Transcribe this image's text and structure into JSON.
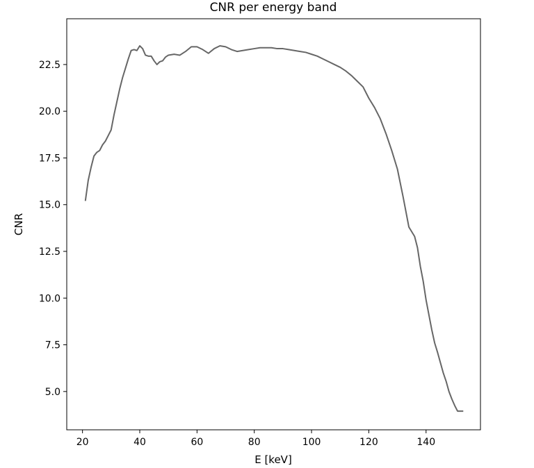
{
  "chart_data": {
    "type": "line",
    "title": "CNR per energy band",
    "xlabel": "E [keV]",
    "ylabel": "CNR",
    "xlim": [
      14.5,
      159
    ],
    "ylim": [
      2.95,
      24.95
    ],
    "xticks": [
      20,
      40,
      60,
      80,
      100,
      120,
      140
    ],
    "xtick_labels": [
      "20",
      "40",
      "60",
      "80",
      "100",
      "120",
      "140"
    ],
    "yticks": [
      5.0,
      7.5,
      10.0,
      12.5,
      15.0,
      17.5,
      20.0,
      22.5
    ],
    "ytick_labels": [
      "5.0",
      "7.5",
      "10.0",
      "12.5",
      "15.0",
      "17.5",
      "20.0",
      "22.5"
    ],
    "grid": false,
    "series": [
      {
        "color": "#666666",
        "x": [
          21,
          22,
          23,
          24,
          25,
          26,
          27,
          28,
          29,
          30,
          31,
          32,
          33,
          34,
          35,
          36,
          37,
          38,
          39,
          40,
          41,
          42,
          43,
          44,
          45,
          46,
          47,
          48,
          49,
          50,
          52,
          54,
          56,
          58,
          60,
          62,
          64,
          66,
          68,
          70,
          72,
          74,
          76,
          78,
          80,
          82,
          84,
          86,
          88,
          90,
          92,
          94,
          96,
          98,
          100,
          102,
          104,
          106,
          108,
          110,
          112,
          114,
          116,
          118,
          120,
          122,
          124,
          126,
          128,
          130,
          132,
          134,
          136,
          137,
          138,
          139,
          140,
          141,
          142,
          143,
          144,
          145,
          146,
          147,
          148,
          149,
          150,
          151,
          152,
          153
        ],
        "y": [
          15.2,
          16.3,
          17.0,
          17.6,
          17.8,
          17.9,
          18.2,
          18.4,
          18.7,
          19.0,
          19.8,
          20.5,
          21.2,
          21.8,
          22.3,
          22.8,
          23.25,
          23.3,
          23.25,
          23.5,
          23.35,
          23.0,
          22.95,
          22.95,
          22.7,
          22.5,
          22.65,
          22.7,
          22.9,
          23.0,
          23.05,
          23.0,
          23.2,
          23.45,
          23.45,
          23.3,
          23.1,
          23.35,
          23.5,
          23.45,
          23.3,
          23.2,
          23.25,
          23.3,
          23.35,
          23.4,
          23.4,
          23.4,
          23.35,
          23.35,
          23.3,
          23.25,
          23.2,
          23.15,
          23.05,
          22.95,
          22.8,
          22.65,
          22.5,
          22.35,
          22.15,
          21.9,
          21.6,
          21.3,
          20.7,
          20.2,
          19.6,
          18.8,
          17.9,
          16.9,
          15.4,
          13.8,
          13.3,
          12.7,
          11.7,
          10.9,
          9.9,
          9.1,
          8.3,
          7.6,
          7.1,
          6.55,
          6.0,
          5.55,
          5.0,
          4.6,
          4.25,
          3.95,
          3.95,
          3.95
        ]
      }
    ]
  }
}
